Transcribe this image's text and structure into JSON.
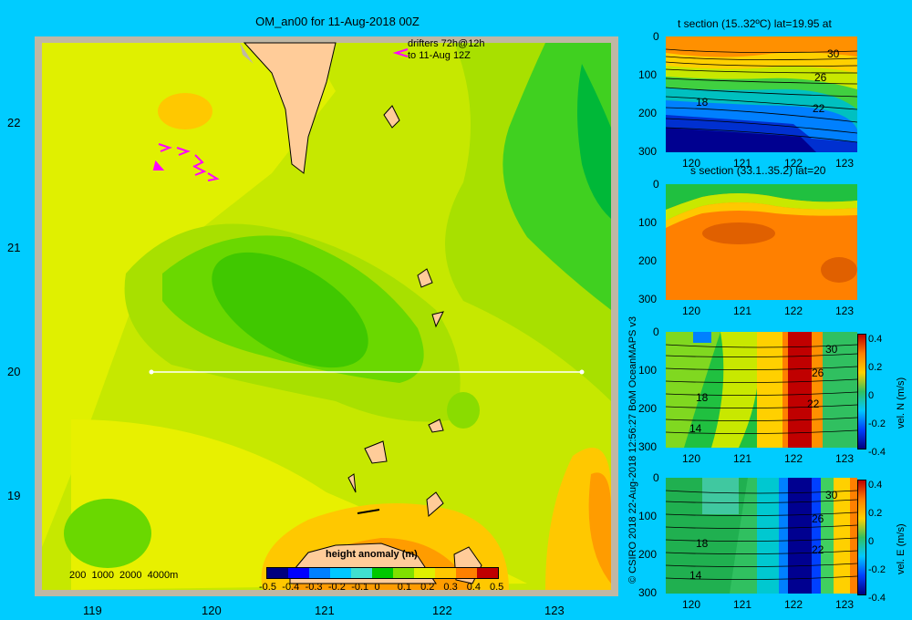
{
  "map": {
    "title": "OM_an00 for 11-Aug-2018 00Z",
    "drifters_line1": "drifters 72h@12h",
    "drifters_line2": "to 11-Aug 12Z",
    "depth_legend": "200  1000  2000  4000m",
    "x_ticks": [
      "119",
      "120",
      "121",
      "122",
      "123"
    ],
    "y_ticks": [
      "22",
      "21",
      "20",
      "19"
    ],
    "section_lat": 20,
    "colorbar_title": "height anomaly  (m)",
    "colorbar_ticks": [
      "-0.5",
      "-0.4",
      "-0.3",
      "-0.2",
      "-0.1",
      "0",
      "0.1",
      "0.2",
      "0.3",
      "0.4",
      "0.5"
    ],
    "colorbar_colors": [
      "#00007f",
      "#0000ff",
      "#0080ff",
      "#00c8ff",
      "#40e0d0",
      "#00c800",
      "#80e000",
      "#e0f000",
      "#ffc800",
      "#ff8000",
      "#c00000"
    ]
  },
  "credit": "© CSIRO 2018   22-Aug-2018 12:56:27 BoM OceanMAPS v3",
  "panels": [
    {
      "title": "t section (15..32ºC) lat=19.95 at",
      "x_ticks": [
        "120",
        "121",
        "122",
        "123"
      ],
      "y_ticks": [
        "0",
        "100",
        "200",
        "300"
      ],
      "contour_labels": [
        "30",
        "26",
        "22",
        "18"
      ],
      "colorbar": null
    },
    {
      "title": "s section (33.1..35.2) lat=20",
      "x_ticks": [
        "120",
        "121",
        "122",
        "123"
      ],
      "y_ticks": [
        "0",
        "100",
        "200",
        "300"
      ],
      "contour_labels": [],
      "colorbar": null
    },
    {
      "title": "",
      "x_ticks": [
        "120",
        "121",
        "122",
        "123"
      ],
      "y_ticks": [
        "0",
        "100",
        "200",
        "300"
      ],
      "contour_labels": [
        "30",
        "26",
        "22",
        "18",
        "14"
      ],
      "colorbar": {
        "label": "vel. N  (m/s)",
        "ticks": [
          "0.4",
          "0.2",
          "0",
          "-0.2",
          "-0.4"
        ]
      }
    },
    {
      "title": "",
      "x_ticks": [
        "120",
        "121",
        "122",
        "123"
      ],
      "y_ticks": [
        "0",
        "100",
        "200",
        "300"
      ],
      "contour_labels": [
        "30",
        "26",
        "22",
        "18",
        "14"
      ],
      "colorbar": {
        "label": "vel. E  (m/s)",
        "ticks": [
          "0.4",
          "0.2",
          "0",
          "-0.2",
          "-0.4"
        ]
      }
    }
  ]
}
